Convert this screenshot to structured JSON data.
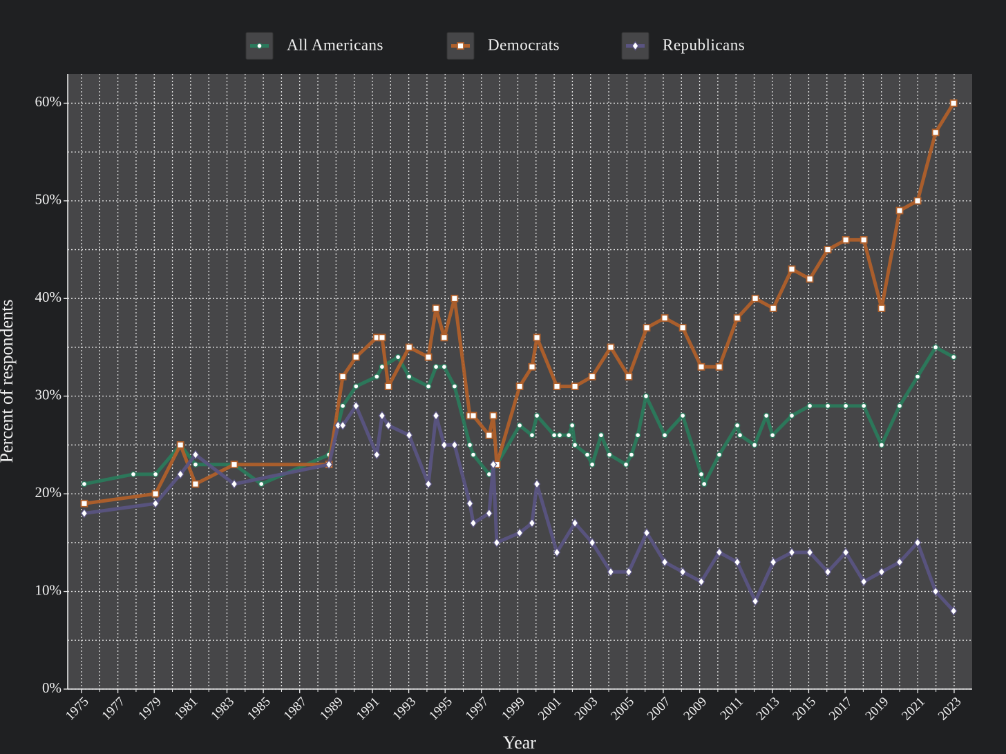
{
  "chart_data": {
    "type": "line",
    "xlabel": "Year",
    "ylabel": "Percent of respondents",
    "xlim": [
      1974.24,
      2023.99
    ],
    "ylim": [
      0,
      63
    ],
    "xticks": [
      1975,
      1977,
      1979,
      1981,
      1983,
      1985,
      1987,
      1989,
      1991,
      1993,
      1995,
      1997,
      1999,
      2001,
      2003,
      2005,
      2007,
      2009,
      2011,
      2013,
      2015,
      2017,
      2019,
      2021,
      2023
    ],
    "xminor_ticks": [
      1976,
      1978,
      1980,
      1982,
      1984,
      1986,
      1988,
      1990,
      1992,
      1994,
      1996,
      1998,
      2000,
      2002,
      2004,
      2006,
      2008,
      2010,
      2012,
      2014,
      2016,
      2018,
      2020,
      2022
    ],
    "yticks": [
      {
        "value": 0,
        "label": "0%"
      },
      {
        "value": 10,
        "label": "10%"
      },
      {
        "value": 20,
        "label": "20%"
      },
      {
        "value": 30,
        "label": "30%"
      },
      {
        "value": 40,
        "label": "40%"
      },
      {
        "value": 50,
        "label": "50%"
      },
      {
        "value": 60,
        "label": "60%"
      }
    ],
    "yminor_ticks": [
      5,
      15,
      25,
      35,
      45,
      55
    ],
    "grid": true,
    "legend": "top",
    "series": [
      {
        "name": "All Americans",
        "color": "#2b7a5c",
        "marker": "circle",
        "x": [
          1975.15,
          1977.85,
          1979.07,
          1980.44,
          1981.27,
          1983.4,
          1984.89,
          1988.61,
          1989.11,
          1989.37,
          1990.1,
          1991.24,
          1991.53,
          1992.41,
          1993.02,
          1994.08,
          1994.5,
          1994.95,
          1995.52,
          1996.36,
          1996.55,
          1997.42,
          1997.84,
          1999.1,
          1999.78,
          2000.05,
          2001.0,
          2001.3,
          2001.8,
          2001.99,
          2002.14,
          2002.82,
          2003.09,
          2003.58,
          2004.04,
          2004.95,
          2005.25,
          2005.6,
          2006.05,
          2007.08,
          2008.07,
          2009.09,
          2009.25,
          2010.08,
          2011.07,
          2011.22,
          2012.02,
          2012.67,
          2013.01,
          2014.07,
          2015.06,
          2016.05,
          2017.04,
          2018.03,
          2019.01,
          2020.0,
          2020.99,
          2021.98,
          2022.97
        ],
        "values": [
          21,
          22,
          22,
          25,
          23,
          23,
          21,
          24,
          27,
          29,
          31,
          32,
          33,
          34,
          32,
          31,
          33,
          33,
          31,
          25,
          24,
          22,
          23,
          27,
          26,
          28,
          26,
          26,
          26,
          27,
          25,
          24,
          23,
          26,
          24,
          23,
          24,
          26,
          30,
          26,
          28,
          22,
          21,
          24,
          27,
          26,
          25,
          28,
          26,
          28,
          29,
          29,
          29,
          29,
          25,
          29,
          32,
          35,
          34
        ]
      },
      {
        "name": "Democrats",
        "color": "#b0602b",
        "marker": "square",
        "x": [
          1975.15,
          1979.07,
          1980.44,
          1981.27,
          1983.4,
          1988.61,
          1989.37,
          1990.1,
          1991.24,
          1991.53,
          1991.88,
          1993.02,
          1994.08,
          1994.5,
          1994.95,
          1995.52,
          1996.36,
          1996.55,
          1997.42,
          1997.65,
          1997.84,
          1999.1,
          1999.78,
          2000.05,
          2001.15,
          2002.14,
          2003.09,
          2004.11,
          2005.1,
          2006.09,
          2007.08,
          2008.07,
          2009.09,
          2010.08,
          2011.07,
          2012.06,
          2013.05,
          2014.07,
          2015.06,
          2016.05,
          2017.04,
          2018.03,
          2019.01,
          2020.0,
          2020.99,
          2021.98,
          2022.97
        ],
        "values": [
          19,
          20,
          25,
          21,
          23,
          23,
          32,
          34,
          36,
          36,
          31,
          35,
          34,
          39,
          36,
          40,
          28,
          28,
          26,
          28,
          23,
          31,
          33,
          36,
          31,
          31,
          32,
          35,
          32,
          37,
          38,
          37,
          33,
          33,
          38,
          40,
          39,
          43,
          42,
          45,
          46,
          46,
          39,
          49,
          50,
          57,
          60
        ]
      },
      {
        "name": "Republicans",
        "color": "#5a5482",
        "marker": "diamond",
        "x": [
          1975.15,
          1979.07,
          1980.44,
          1981.27,
          1983.4,
          1988.61,
          1989.11,
          1989.37,
          1990.1,
          1991.24,
          1991.53,
          1991.88,
          1993.02,
          1994.08,
          1994.5,
          1994.95,
          1995.52,
          1996.36,
          1996.55,
          1997.42,
          1997.65,
          1997.84,
          1999.1,
          1999.78,
          2000.05,
          2001.15,
          2002.14,
          2003.09,
          2004.11,
          2005.1,
          2006.09,
          2007.08,
          2008.07,
          2009.09,
          2010.08,
          2011.07,
          2012.06,
          2013.05,
          2014.07,
          2015.06,
          2016.05,
          2017.04,
          2018.03,
          2019.01,
          2020.0,
          2020.99,
          2021.98,
          2022.97
        ],
        "values": [
          18,
          19,
          22,
          24,
          21,
          23,
          27,
          27,
          29,
          24,
          28,
          27,
          26,
          21,
          28,
          25,
          25,
          19,
          17,
          18,
          23,
          15,
          16,
          17,
          21,
          14,
          17,
          15,
          12,
          12,
          16,
          13,
          12,
          11,
          14,
          13,
          9,
          13,
          14,
          14,
          12,
          14,
          11,
          12,
          13,
          15,
          10,
          8
        ]
      }
    ]
  }
}
